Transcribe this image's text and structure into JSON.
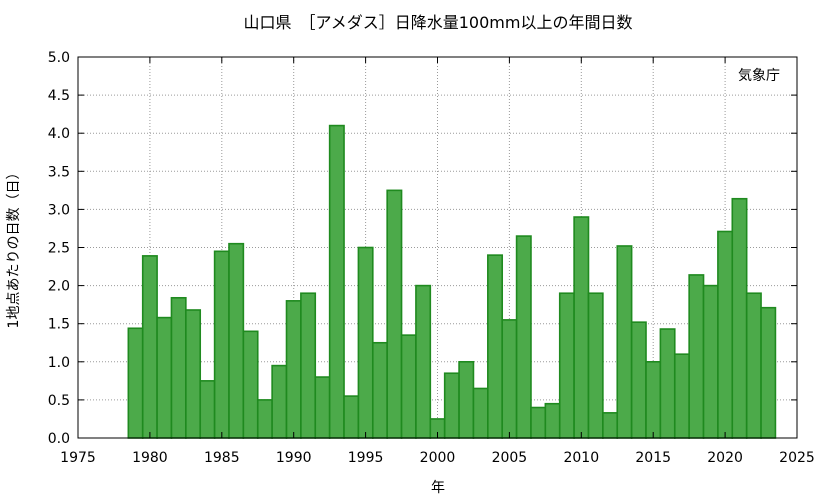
{
  "chart_data": {
    "type": "bar",
    "title": "山口県　［アメダス］日降水量100mm以上の年間日数",
    "xlabel": "年",
    "ylabel": "1地点あたりの日数（日）",
    "annotation": "気象庁",
    "xlim": [
      1975,
      2025
    ],
    "ylim": [
      0,
      5.0
    ],
    "xticks": [
      "1975",
      "1980",
      "1985",
      "1990",
      "1995",
      "2000",
      "2005",
      "2010",
      "2015",
      "2020",
      "2025"
    ],
    "yticks": [
      "0.0",
      "0.5",
      "1.0",
      "1.5",
      "2.0",
      "2.5",
      "3.0",
      "3.5",
      "4.0",
      "4.5",
      "5.0"
    ],
    "grid": true,
    "bar_color": "#4caa4a",
    "bar_edge_color": "#1f8a1f",
    "years": [
      1979,
      1980,
      1981,
      1982,
      1983,
      1984,
      1985,
      1986,
      1987,
      1988,
      1989,
      1990,
      1991,
      1992,
      1993,
      1994,
      1995,
      1996,
      1997,
      1998,
      1999,
      2000,
      2001,
      2002,
      2003,
      2004,
      2005,
      2006,
      2007,
      2008,
      2009,
      2010,
      2011,
      2012,
      2013,
      2014,
      2015,
      2016,
      2017,
      2018,
      2019,
      2020,
      2021,
      2022,
      2023
    ],
    "values": [
      1.44,
      2.39,
      1.58,
      1.84,
      1.68,
      0.75,
      2.45,
      2.55,
      1.4,
      0.5,
      0.95,
      1.8,
      1.9,
      0.8,
      4.1,
      0.55,
      2.5,
      1.25,
      3.25,
      1.35,
      2.0,
      0.25,
      0.85,
      1.0,
      0.65,
      2.4,
      1.55,
      2.65,
      0.4,
      0.45,
      1.9,
      2.9,
      1.9,
      0.33,
      2.52,
      1.52,
      1.0,
      1.43,
      1.1,
      2.14,
      2.0,
      2.71,
      3.14,
      1.9,
      1.71
    ]
  }
}
